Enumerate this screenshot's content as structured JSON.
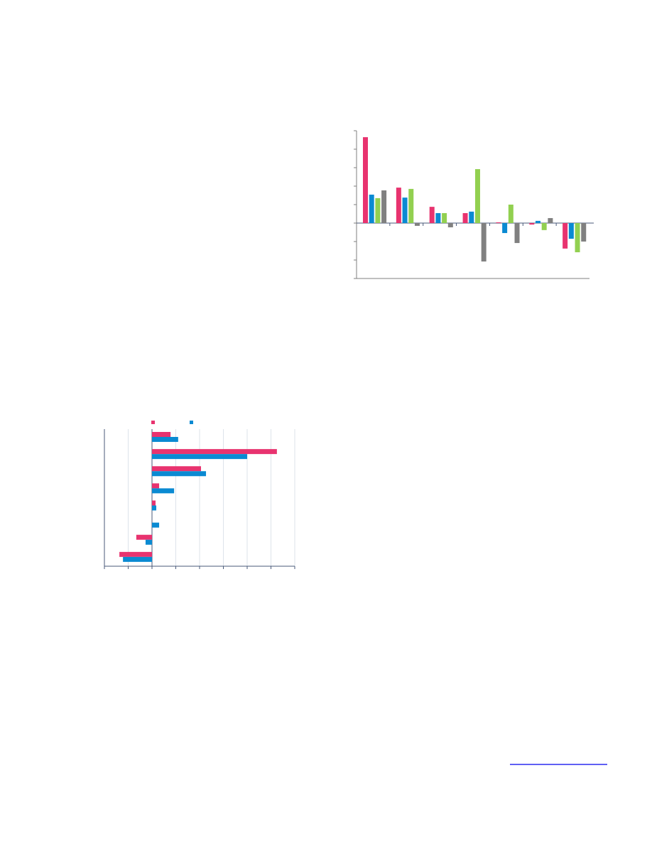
{
  "chart_data": [
    {
      "type": "bar",
      "categories": [
        null,
        null,
        null,
        null,
        null,
        null,
        null
      ],
      "series": [
        {
          "color": "#e8336f",
          "values": [
            4.65,
            1.92,
            0.88,
            0.54,
            0.04,
            -0.08,
            -1.38
          ]
        },
        {
          "color": "#0a8ad2",
          "values": [
            1.54,
            1.38,
            0.54,
            0.62,
            -0.54,
            0.12,
            -0.85
          ]
        },
        {
          "color": "#92d050",
          "values": [
            1.35,
            1.85,
            0.54,
            2.92,
            1.0,
            -0.38,
            -1.58
          ]
        },
        {
          "color": "#808080",
          "values": [
            1.77,
            -0.15,
            -0.23,
            -2.08,
            -1.08,
            0.27,
            -1.0
          ]
        }
      ],
      "ylim": [
        -3,
        5
      ],
      "yticks": [
        -3,
        -2,
        -1,
        0,
        1,
        2,
        3,
        4,
        5
      ],
      "grid": false
    },
    {
      "type": "hbar",
      "categories": [
        null,
        null,
        null,
        null,
        null,
        null,
        null,
        null
      ],
      "series": [
        {
          "color": "#e8336f",
          "values": [
            0.78,
            5.25,
            2.06,
            0.3,
            0.15,
            0,
            -0.66,
            -1.37
          ]
        },
        {
          "color": "#0a8ad2",
          "values": [
            1.1,
            4.0,
            2.27,
            0.93,
            0.18,
            0.3,
            -0.27,
            -1.22
          ]
        }
      ],
      "xlim": [
        -2,
        6
      ],
      "xticks": [
        -2,
        -1,
        0,
        1,
        2,
        3,
        4,
        5,
        6
      ],
      "grid": true,
      "legend": "top"
    }
  ]
}
